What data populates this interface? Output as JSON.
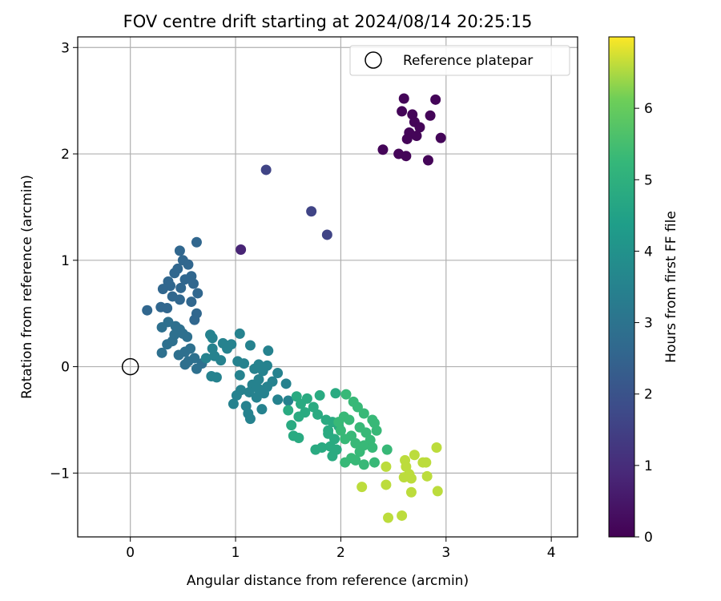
{
  "chart_data": {
    "type": "scatter",
    "title": "FOV centre drift starting at 2024/08/14 20:25:15",
    "xlabel": "Angular distance from reference (arcmin)",
    "ylabel": "Rotation from reference (arcmin)",
    "xlim": [
      -0.5,
      4.25
    ],
    "ylim": [
      -1.6,
      3.1
    ],
    "xticks": [
      0,
      1,
      2,
      3,
      4
    ],
    "yticks": [
      -1,
      0,
      1,
      2,
      3
    ],
    "grid": true,
    "legend": {
      "position": "top-right",
      "entries": [
        "Reference platepar"
      ]
    },
    "reference_point": {
      "x": 0,
      "y": 0
    },
    "colorbar": {
      "label": "Hours from first FF file",
      "colormap": "viridis",
      "range": [
        0,
        7
      ],
      "ticks": [
        0,
        1,
        2,
        3,
        4,
        5,
        6
      ]
    },
    "points": [
      {
        "x": 2.6,
        "y": 2.52,
        "h": 0.1
      },
      {
        "x": 2.9,
        "y": 2.51,
        "h": 0.1
      },
      {
        "x": 2.58,
        "y": 2.4,
        "h": 0.1
      },
      {
        "x": 2.68,
        "y": 2.37,
        "h": 0.1
      },
      {
        "x": 2.85,
        "y": 2.36,
        "h": 0.1
      },
      {
        "x": 2.7,
        "y": 2.3,
        "h": 0.1
      },
      {
        "x": 2.75,
        "y": 2.25,
        "h": 0.1
      },
      {
        "x": 2.65,
        "y": 2.2,
        "h": 0.1
      },
      {
        "x": 2.72,
        "y": 2.17,
        "h": 0.1
      },
      {
        "x": 2.95,
        "y": 2.15,
        "h": 0.1
      },
      {
        "x": 2.63,
        "y": 2.14,
        "h": 0.1
      },
      {
        "x": 2.4,
        "y": 2.04,
        "h": 0.1
      },
      {
        "x": 2.55,
        "y": 2.0,
        "h": 0.1
      },
      {
        "x": 2.62,
        "y": 1.98,
        "h": 0.1
      },
      {
        "x": 2.83,
        "y": 1.94,
        "h": 0.1
      },
      {
        "x": 1.05,
        "y": 1.1,
        "h": 0.8
      },
      {
        "x": 1.29,
        "y": 1.85,
        "h": 1.6
      },
      {
        "x": 1.72,
        "y": 1.46,
        "h": 1.6
      },
      {
        "x": 1.87,
        "y": 1.24,
        "h": 1.6
      },
      {
        "x": 0.47,
        "y": 1.09,
        "h": 2.6
      },
      {
        "x": 0.63,
        "y": 1.17,
        "h": 2.6
      },
      {
        "x": 0.5,
        "y": 1.0,
        "h": 2.6
      },
      {
        "x": 0.45,
        "y": 0.92,
        "h": 2.6
      },
      {
        "x": 0.55,
        "y": 0.96,
        "h": 2.6
      },
      {
        "x": 0.42,
        "y": 0.88,
        "h": 2.6
      },
      {
        "x": 0.58,
        "y": 0.85,
        "h": 2.6
      },
      {
        "x": 0.52,
        "y": 0.82,
        "h": 2.6
      },
      {
        "x": 0.36,
        "y": 0.8,
        "h": 2.6
      },
      {
        "x": 0.6,
        "y": 0.78,
        "h": 2.6
      },
      {
        "x": 0.38,
        "y": 0.76,
        "h": 2.6
      },
      {
        "x": 0.31,
        "y": 0.73,
        "h": 2.6
      },
      {
        "x": 0.48,
        "y": 0.74,
        "h": 2.6
      },
      {
        "x": 0.64,
        "y": 0.69,
        "h": 2.6
      },
      {
        "x": 0.4,
        "y": 0.66,
        "h": 2.6
      },
      {
        "x": 0.47,
        "y": 0.63,
        "h": 2.6
      },
      {
        "x": 0.58,
        "y": 0.61,
        "h": 2.6
      },
      {
        "x": 0.29,
        "y": 0.56,
        "h": 2.6
      },
      {
        "x": 0.35,
        "y": 0.55,
        "h": 2.6
      },
      {
        "x": 0.16,
        "y": 0.53,
        "h": 2.6
      },
      {
        "x": 0.63,
        "y": 0.5,
        "h": 2.6
      },
      {
        "x": 0.61,
        "y": 0.44,
        "h": 2.6
      },
      {
        "x": 0.36,
        "y": 0.42,
        "h": 2.9
      },
      {
        "x": 0.3,
        "y": 0.37,
        "h": 2.9
      },
      {
        "x": 0.43,
        "y": 0.38,
        "h": 2.9
      },
      {
        "x": 0.47,
        "y": 0.35,
        "h": 2.9
      },
      {
        "x": 0.5,
        "y": 0.31,
        "h": 2.9
      },
      {
        "x": 0.42,
        "y": 0.3,
        "h": 2.9
      },
      {
        "x": 0.54,
        "y": 0.28,
        "h": 2.9
      },
      {
        "x": 0.4,
        "y": 0.24,
        "h": 2.9
      },
      {
        "x": 0.35,
        "y": 0.21,
        "h": 2.9
      },
      {
        "x": 0.57,
        "y": 0.17,
        "h": 2.9
      },
      {
        "x": 0.52,
        "y": 0.14,
        "h": 2.9
      },
      {
        "x": 0.3,
        "y": 0.13,
        "h": 2.9
      },
      {
        "x": 0.46,
        "y": 0.11,
        "h": 2.9
      },
      {
        "x": 0.61,
        "y": 0.08,
        "h": 2.9
      },
      {
        "x": 0.55,
        "y": 0.05,
        "h": 2.9
      },
      {
        "x": 0.52,
        "y": 0.02,
        "h": 2.9
      },
      {
        "x": 0.63,
        "y": -0.02,
        "h": 2.9
      },
      {
        "x": 0.68,
        "y": 0.03,
        "h": 2.9
      },
      {
        "x": 0.76,
        "y": 0.3,
        "h": 3.5
      },
      {
        "x": 0.78,
        "y": 0.27,
        "h": 3.5
      },
      {
        "x": 1.04,
        "y": 0.31,
        "h": 3.5
      },
      {
        "x": 0.88,
        "y": 0.22,
        "h": 3.5
      },
      {
        "x": 0.96,
        "y": 0.21,
        "h": 3.5
      },
      {
        "x": 1.14,
        "y": 0.2,
        "h": 3.5
      },
      {
        "x": 0.78,
        "y": 0.17,
        "h": 3.5
      },
      {
        "x": 0.92,
        "y": 0.17,
        "h": 3.5
      },
      {
        "x": 1.31,
        "y": 0.15,
        "h": 3.5
      },
      {
        "x": 0.8,
        "y": 0.1,
        "h": 3.5
      },
      {
        "x": 0.72,
        "y": 0.08,
        "h": 3.5
      },
      {
        "x": 0.86,
        "y": 0.06,
        "h": 3.5
      },
      {
        "x": 1.02,
        "y": 0.05,
        "h": 3.5
      },
      {
        "x": 1.08,
        "y": 0.03,
        "h": 3.5
      },
      {
        "x": 1.22,
        "y": 0.02,
        "h": 3.5
      },
      {
        "x": 1.3,
        "y": 0.01,
        "h": 3.5
      },
      {
        "x": 1.18,
        "y": -0.02,
        "h": 3.5
      },
      {
        "x": 1.26,
        "y": -0.04,
        "h": 3.5
      },
      {
        "x": 1.4,
        "y": -0.06,
        "h": 3.5
      },
      {
        "x": 1.04,
        "y": -0.08,
        "h": 3.5
      },
      {
        "x": 0.77,
        "y": -0.09,
        "h": 3.5
      },
      {
        "x": 0.82,
        "y": -0.1,
        "h": 3.5
      },
      {
        "x": 1.22,
        "y": -0.12,
        "h": 3.5
      },
      {
        "x": 1.35,
        "y": -0.14,
        "h": 3.5
      },
      {
        "x": 1.48,
        "y": -0.16,
        "h": 3.5
      },
      {
        "x": 1.16,
        "y": -0.17,
        "h": 3.5
      },
      {
        "x": 1.3,
        "y": -0.19,
        "h": 3.5
      },
      {
        "x": 1.22,
        "y": -0.21,
        "h": 3.5
      },
      {
        "x": 1.05,
        "y": -0.22,
        "h": 3.5
      },
      {
        "x": 1.13,
        "y": -0.24,
        "h": 3.5
      },
      {
        "x": 1.27,
        "y": -0.25,
        "h": 3.5
      },
      {
        "x": 1.01,
        "y": -0.27,
        "h": 3.5
      },
      {
        "x": 1.2,
        "y": -0.29,
        "h": 3.5
      },
      {
        "x": 1.4,
        "y": -0.31,
        "h": 3.5
      },
      {
        "x": 1.5,
        "y": -0.32,
        "h": 3.5
      },
      {
        "x": 0.98,
        "y": -0.35,
        "h": 3.5
      },
      {
        "x": 1.1,
        "y": -0.37,
        "h": 3.5
      },
      {
        "x": 1.25,
        "y": -0.4,
        "h": 3.5
      },
      {
        "x": 1.12,
        "y": -0.44,
        "h": 3.5
      },
      {
        "x": 1.14,
        "y": -0.49,
        "h": 3.5
      },
      {
        "x": 1.58,
        "y": -0.28,
        "h": 4.8
      },
      {
        "x": 1.68,
        "y": -0.3,
        "h": 4.8
      },
      {
        "x": 1.8,
        "y": -0.27,
        "h": 4.8
      },
      {
        "x": 1.62,
        "y": -0.35,
        "h": 4.8
      },
      {
        "x": 1.74,
        "y": -0.38,
        "h": 4.8
      },
      {
        "x": 1.5,
        "y": -0.41,
        "h": 4.8
      },
      {
        "x": 1.66,
        "y": -0.43,
        "h": 4.8
      },
      {
        "x": 1.78,
        "y": -0.45,
        "h": 4.8
      },
      {
        "x": 1.6,
        "y": -0.47,
        "h": 4.8
      },
      {
        "x": 1.86,
        "y": -0.5,
        "h": 4.8
      },
      {
        "x": 1.92,
        "y": -0.52,
        "h": 4.8
      },
      {
        "x": 1.53,
        "y": -0.55,
        "h": 4.8
      },
      {
        "x": 1.98,
        "y": -0.56,
        "h": 4.8
      },
      {
        "x": 1.88,
        "y": -0.6,
        "h": 4.8
      },
      {
        "x": 1.55,
        "y": -0.65,
        "h": 4.8
      },
      {
        "x": 1.6,
        "y": -0.67,
        "h": 4.8
      },
      {
        "x": 1.88,
        "y": -0.63,
        "h": 4.8
      },
      {
        "x": 1.94,
        "y": -0.68,
        "h": 4.8
      },
      {
        "x": 1.82,
        "y": -0.76,
        "h": 4.8
      },
      {
        "x": 1.76,
        "y": -0.78,
        "h": 4.8
      },
      {
        "x": 1.9,
        "y": -0.75,
        "h": 4.8
      },
      {
        "x": 1.96,
        "y": -0.78,
        "h": 4.8
      },
      {
        "x": 1.92,
        "y": -0.84,
        "h": 4.8
      },
      {
        "x": 1.95,
        "y": -0.25,
        "h": 4.8
      },
      {
        "x": 2.05,
        "y": -0.26,
        "h": 5.3
      },
      {
        "x": 2.12,
        "y": -0.33,
        "h": 5.3
      },
      {
        "x": 2.16,
        "y": -0.38,
        "h": 5.3
      },
      {
        "x": 2.03,
        "y": -0.47,
        "h": 5.3
      },
      {
        "x": 2.08,
        "y": -0.5,
        "h": 5.3
      },
      {
        "x": 2.22,
        "y": -0.44,
        "h": 5.3
      },
      {
        "x": 1.98,
        "y": -0.52,
        "h": 5.3
      },
      {
        "x": 2.3,
        "y": -0.5,
        "h": 5.3
      },
      {
        "x": 2.32,
        "y": -0.53,
        "h": 5.3
      },
      {
        "x": 2.18,
        "y": -0.57,
        "h": 5.3
      },
      {
        "x": 2.0,
        "y": -0.6,
        "h": 5.3
      },
      {
        "x": 2.24,
        "y": -0.62,
        "h": 5.3
      },
      {
        "x": 2.34,
        "y": -0.6,
        "h": 5.3
      },
      {
        "x": 2.1,
        "y": -0.65,
        "h": 5.3
      },
      {
        "x": 2.04,
        "y": -0.68,
        "h": 5.3
      },
      {
        "x": 2.28,
        "y": -0.69,
        "h": 5.3
      },
      {
        "x": 2.14,
        "y": -0.72,
        "h": 5.3
      },
      {
        "x": 2.22,
        "y": -0.74,
        "h": 5.3
      },
      {
        "x": 2.3,
        "y": -0.76,
        "h": 5.3
      },
      {
        "x": 2.18,
        "y": -0.8,
        "h": 5.3
      },
      {
        "x": 2.44,
        "y": -0.78,
        "h": 5.3
      },
      {
        "x": 2.1,
        "y": -0.86,
        "h": 5.3
      },
      {
        "x": 2.04,
        "y": -0.9,
        "h": 5.3
      },
      {
        "x": 2.14,
        "y": -0.88,
        "h": 5.3
      },
      {
        "x": 2.22,
        "y": -0.92,
        "h": 5.3
      },
      {
        "x": 2.32,
        "y": -0.9,
        "h": 5.3
      },
      {
        "x": 2.61,
        "y": -0.88,
        "h": 6.6
      },
      {
        "x": 2.7,
        "y": -0.83,
        "h": 6.6
      },
      {
        "x": 2.91,
        "y": -0.76,
        "h": 6.6
      },
      {
        "x": 2.78,
        "y": -0.9,
        "h": 6.6
      },
      {
        "x": 2.81,
        "y": -0.9,
        "h": 6.6
      },
      {
        "x": 2.62,
        "y": -0.94,
        "h": 6.6
      },
      {
        "x": 2.43,
        "y": -0.94,
        "h": 6.6
      },
      {
        "x": 2.65,
        "y": -1.01,
        "h": 6.6
      },
      {
        "x": 2.6,
        "y": -1.04,
        "h": 6.6
      },
      {
        "x": 2.67,
        "y": -1.05,
        "h": 6.6
      },
      {
        "x": 2.82,
        "y": -1.03,
        "h": 6.6
      },
      {
        "x": 2.43,
        "y": -1.11,
        "h": 6.6
      },
      {
        "x": 2.2,
        "y": -1.13,
        "h": 6.6
      },
      {
        "x": 2.92,
        "y": -1.17,
        "h": 6.6
      },
      {
        "x": 2.67,
        "y": -1.18,
        "h": 6.6
      },
      {
        "x": 2.58,
        "y": -1.4,
        "h": 6.6
      },
      {
        "x": 2.45,
        "y": -1.42,
        "h": 6.6
      }
    ]
  }
}
